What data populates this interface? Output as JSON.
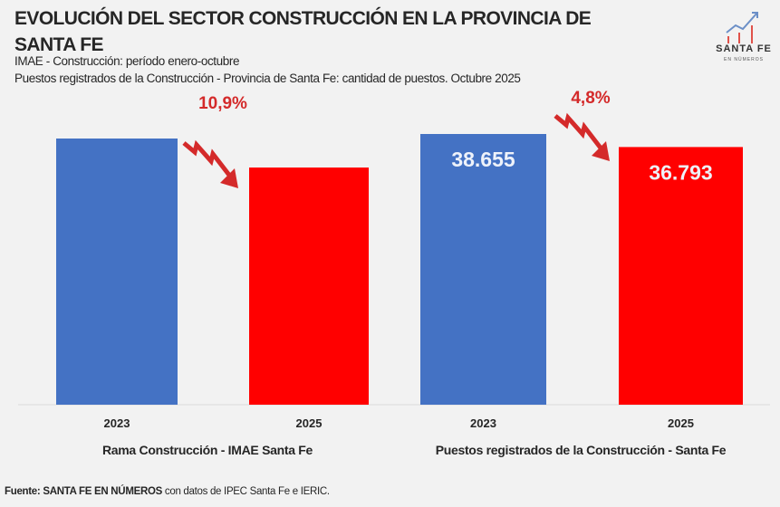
{
  "header": {
    "title": "EVOLUCIÓN DEL SECTOR CONSTRUCCIÓN EN LA PROVINCIA DE SANTA FE",
    "subtitle_1": "IMAE - Construcción: período enero-octubre",
    "subtitle_2": "Puestos registrados de la Construcción - Provincia de Santa Fe: cantidad de puestos. Octubre 2025"
  },
  "logo": {
    "text": "SANTA FE",
    "subtext": "EN NÚMEROS"
  },
  "chart_data": [
    {
      "type": "bar",
      "group_label": "Rama  Construcción  - IMAE Santa  Fe",
      "categories": [
        "2023",
        "2025"
      ],
      "values": [
        1,
        0.891
      ],
      "colors": [
        "#4472c4",
        "#ff0000"
      ],
      "annotation": "10,9%",
      "annotation_color": "#d42a2a"
    },
    {
      "type": "bar",
      "group_label": "Puestos registrados de la Construcción - Santa Fe",
      "categories": [
        "2023",
        "2025"
      ],
      "values": [
        38655,
        36793
      ],
      "data_labels": [
        "38.655",
        "36.793"
      ],
      "colors": [
        "#4472c4",
        "#ff0000"
      ],
      "annotation": "4,8%",
      "annotation_color": "#d42a2a"
    }
  ],
  "footer": {
    "source_label": "Fuente: SANTA FE EN NÚMEROS",
    "source_rest": " con datos de IPEC Santa Fe e IERIC."
  }
}
